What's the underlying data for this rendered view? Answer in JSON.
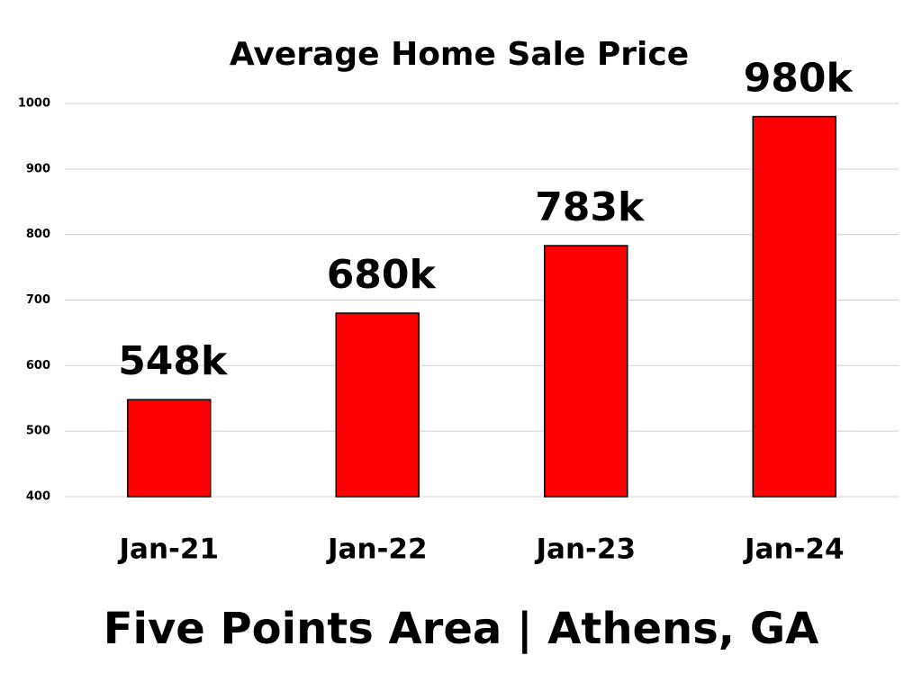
{
  "chart_data": {
    "type": "bar",
    "title": "Average Home Sale Price",
    "subtitle": "Five Points Area | Athens, GA",
    "categories": [
      "Jan-21",
      "Jan-22",
      "Jan-23",
      "Jan-24"
    ],
    "values": [
      548,
      680,
      783,
      980
    ],
    "value_labels": [
      "548k",
      "680k",
      "783k",
      "980k"
    ],
    "color": "#ff0000",
    "ylim": [
      400,
      1000
    ],
    "yticks": [
      400,
      500,
      600,
      700,
      800,
      900,
      1000
    ],
    "grid": true
  }
}
